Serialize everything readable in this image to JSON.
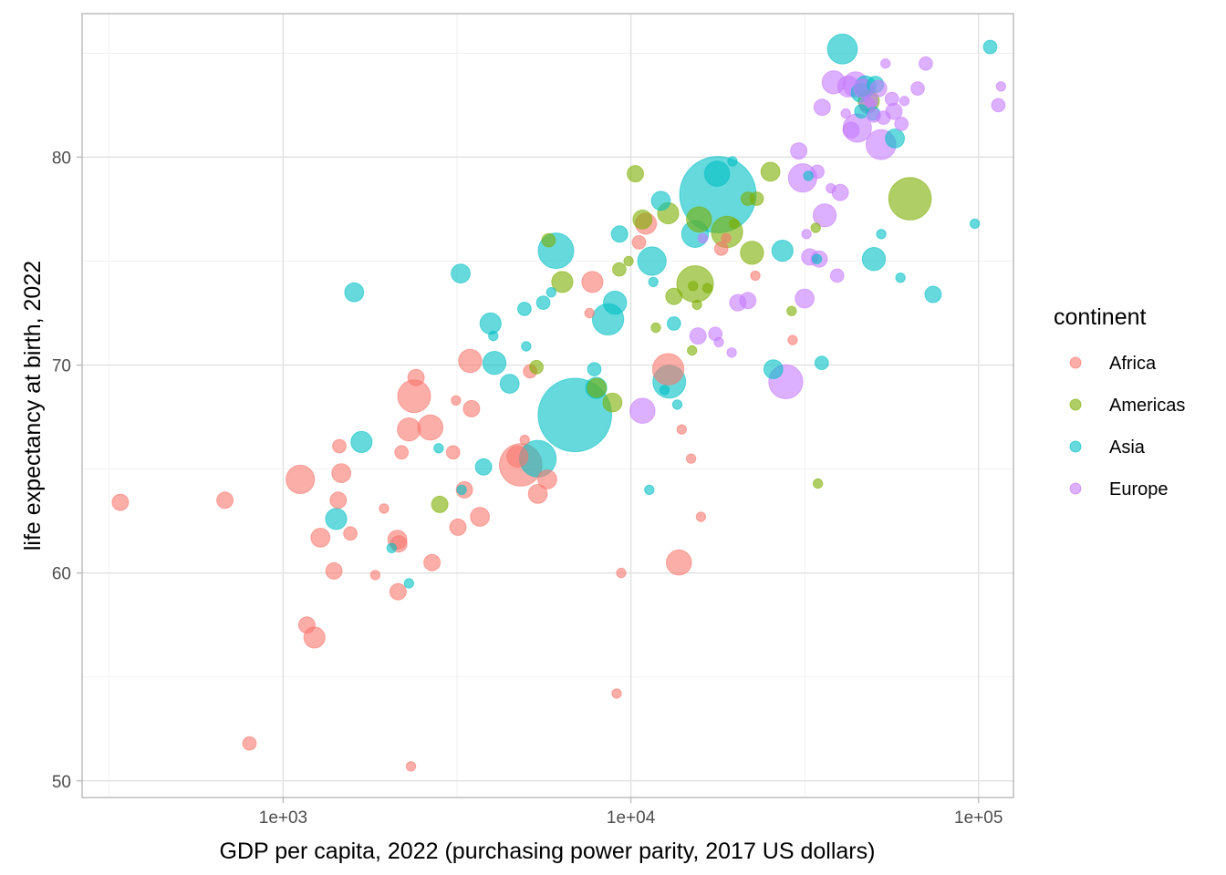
{
  "chart_data": {
    "type": "scatter",
    "title": "",
    "xlabel": "GDP per capita, 2022 (purchasing power parity, 2017 US dollars)",
    "ylabel": "life expectancy at birth, 2022",
    "x_scale": "log10",
    "xlim": [
      264,
      126000
    ],
    "ylim": [
      49.2,
      86.9
    ],
    "x_ticks": [
      1000,
      10000,
      100000
    ],
    "x_tick_labels": [
      "1e+03",
      "1e+04",
      "1e+05"
    ],
    "x_minor_ticks": [
      316,
      3162,
      31623
    ],
    "y_ticks": [
      50,
      60,
      70,
      80
    ],
    "y_tick_labels": [
      "50",
      "60",
      "70",
      "80"
    ],
    "y_minor_ticks": [
      55,
      65,
      75,
      85
    ],
    "grid": true,
    "legend": {
      "title": "continent",
      "position": "right"
    },
    "colors": {
      "Africa": "#F8766D",
      "Americas": "#7CAE00",
      "Asia": "#00BFC4",
      "Europe": "#C77CFF"
    },
    "point_alpha": 0.6,
    "size_encoding": "population (bubble area)",
    "series": [
      {
        "name": "Africa",
        "points": [
          {
            "x": 340,
            "y": 63.4,
            "s": 3
          },
          {
            "x": 680,
            "y": 63.5,
            "s": 3
          },
          {
            "x": 800,
            "y": 51.8,
            "s": 2
          },
          {
            "x": 1120,
            "y": 64.5,
            "s": 9
          },
          {
            "x": 1170,
            "y": 57.5,
            "s": 3
          },
          {
            "x": 1230,
            "y": 56.9,
            "s": 5
          },
          {
            "x": 1280,
            "y": 61.7,
            "s": 4
          },
          {
            "x": 1400,
            "y": 60.1,
            "s": 3
          },
          {
            "x": 1440,
            "y": 63.5,
            "s": 3
          },
          {
            "x": 1470,
            "y": 64.8,
            "s": 4
          },
          {
            "x": 1450,
            "y": 66.1,
            "s": 2
          },
          {
            "x": 1560,
            "y": 61.9,
            "s": 2
          },
          {
            "x": 1840,
            "y": 59.9,
            "s": 1
          },
          {
            "x": 1950,
            "y": 63.1,
            "s": 1
          },
          {
            "x": 2130,
            "y": 61.6,
            "s": 4
          },
          {
            "x": 2150,
            "y": 61.4,
            "s": 3
          },
          {
            "x": 2140,
            "y": 59.1,
            "s": 3
          },
          {
            "x": 2190,
            "y": 65.8,
            "s": 2
          },
          {
            "x": 2300,
            "y": 66.9,
            "s": 6
          },
          {
            "x": 2380,
            "y": 68.5,
            "s": 12
          },
          {
            "x": 2410,
            "y": 69.4,
            "s": 3
          },
          {
            "x": 2650,
            "y": 67.0,
            "s": 7
          },
          {
            "x": 2680,
            "y": 60.5,
            "s": 3
          },
          {
            "x": 2330,
            "y": 50.7,
            "s": 1
          },
          {
            "x": 3080,
            "y": 65.8,
            "s": 2
          },
          {
            "x": 3180,
            "y": 62.2,
            "s": 3
          },
          {
            "x": 3320,
            "y": 64.0,
            "s": 3
          },
          {
            "x": 3450,
            "y": 70.2,
            "s": 6
          },
          {
            "x": 3480,
            "y": 67.9,
            "s": 3
          },
          {
            "x": 3680,
            "y": 62.7,
            "s": 4
          },
          {
            "x": 3140,
            "y": 68.3,
            "s": 1
          },
          {
            "x": 4820,
            "y": 65.2,
            "s": 20
          },
          {
            "x": 4720,
            "y": 65.6,
            "s": 5
          },
          {
            "x": 5130,
            "y": 69.7,
            "s": 2
          },
          {
            "x": 5400,
            "y": 63.8,
            "s": 4
          },
          {
            "x": 5750,
            "y": 64.5,
            "s": 4
          },
          {
            "x": 4950,
            "y": 66.4,
            "s": 1
          },
          {
            "x": 7750,
            "y": 74.0,
            "s": 5
          },
          {
            "x": 7600,
            "y": 72.5,
            "s": 1
          },
          {
            "x": 9380,
            "y": 60.0,
            "s": 1
          },
          {
            "x": 9100,
            "y": 54.2,
            "s": 1
          },
          {
            "x": 11050,
            "y": 76.8,
            "s": 5
          },
          {
            "x": 10550,
            "y": 75.9,
            "s": 2
          },
          {
            "x": 12800,
            "y": 69.8,
            "s": 11
          },
          {
            "x": 13750,
            "y": 60.5,
            "s": 7
          },
          {
            "x": 14000,
            "y": 66.9,
            "s": 1
          },
          {
            "x": 14900,
            "y": 65.5,
            "s": 1
          },
          {
            "x": 15900,
            "y": 62.7,
            "s": 1
          },
          {
            "x": 18200,
            "y": 75.6,
            "s": 2
          },
          {
            "x": 18800,
            "y": 76.1,
            "s": 1
          },
          {
            "x": 22800,
            "y": 74.3,
            "s": 1
          },
          {
            "x": 29200,
            "y": 71.2,
            "s": 1
          }
        ]
      },
      {
        "name": "Americas",
        "points": [
          {
            "x": 2820,
            "y": 63.3,
            "s": 3
          },
          {
            "x": 5350,
            "y": 69.9,
            "s": 2
          },
          {
            "x": 5800,
            "y": 76.0,
            "s": 2
          },
          {
            "x": 6350,
            "y": 74.0,
            "s": 5
          },
          {
            "x": 7980,
            "y": 68.9,
            "s": 4
          },
          {
            "x": 8850,
            "y": 68.2,
            "s": 4
          },
          {
            "x": 9260,
            "y": 74.6,
            "s": 2
          },
          {
            "x": 9850,
            "y": 75.0,
            "s": 1
          },
          {
            "x": 10300,
            "y": 79.2,
            "s": 3
          },
          {
            "x": 10800,
            "y": 77.0,
            "s": 4
          },
          {
            "x": 11800,
            "y": 71.8,
            "s": 1
          },
          {
            "x": 12800,
            "y": 77.3,
            "s": 5
          },
          {
            "x": 13300,
            "y": 73.3,
            "s": 3
          },
          {
            "x": 15100,
            "y": 73.8,
            "s": 1
          },
          {
            "x": 15000,
            "y": 70.7,
            "s": 1
          },
          {
            "x": 15300,
            "y": 73.9,
            "s": 15
          },
          {
            "x": 15500,
            "y": 72.9,
            "s": 1
          },
          {
            "x": 15700,
            "y": 77.0,
            "s": 7
          },
          {
            "x": 16600,
            "y": 73.7,
            "s": 1
          },
          {
            "x": 18900,
            "y": 76.4,
            "s": 11
          },
          {
            "x": 19800,
            "y": 76.8,
            "s": 1
          },
          {
            "x": 21700,
            "y": 78.0,
            "s": 2
          },
          {
            "x": 22300,
            "y": 75.4,
            "s": 6
          },
          {
            "x": 23000,
            "y": 78.0,
            "s": 2
          },
          {
            "x": 25200,
            "y": 79.3,
            "s": 4
          },
          {
            "x": 29000,
            "y": 72.6,
            "s": 1
          },
          {
            "x": 34000,
            "y": 76.6,
            "s": 1
          },
          {
            "x": 34500,
            "y": 64.3,
            "s": 1
          },
          {
            "x": 48300,
            "y": 82.7,
            "s": 5
          },
          {
            "x": 63500,
            "y": 78.0,
            "s": 20
          }
        ]
      },
      {
        "name": "Asia",
        "points": [
          {
            "x": 1600,
            "y": 73.5,
            "s": 4
          },
          {
            "x": 1420,
            "y": 62.6,
            "s": 5
          },
          {
            "x": 1680,
            "y": 66.3,
            "s": 5
          },
          {
            "x": 2050,
            "y": 61.2,
            "s": 1
          },
          {
            "x": 2300,
            "y": 59.5,
            "s": 1
          },
          {
            "x": 2800,
            "y": 66.0,
            "s": 1
          },
          {
            "x": 3240,
            "y": 74.4,
            "s": 4
          },
          {
            "x": 3260,
            "y": 64.0,
            "s": 1
          },
          {
            "x": 3770,
            "y": 65.1,
            "s": 3
          },
          {
            "x": 3950,
            "y": 72.0,
            "s": 5
          },
          {
            "x": 4020,
            "y": 71.4,
            "s": 1
          },
          {
            "x": 4050,
            "y": 70.1,
            "s": 6
          },
          {
            "x": 4480,
            "y": 69.1,
            "s": 4
          },
          {
            "x": 4940,
            "y": 72.7,
            "s": 2
          },
          {
            "x": 5000,
            "y": 70.9,
            "s": 1
          },
          {
            "x": 5400,
            "y": 65.5,
            "s": 15
          },
          {
            "x": 5600,
            "y": 73.0,
            "s": 2
          },
          {
            "x": 5900,
            "y": 73.5,
            "s": 1
          },
          {
            "x": 6090,
            "y": 75.5,
            "s": 14
          },
          {
            "x": 6900,
            "y": 67.6,
            "s": 60
          },
          {
            "x": 7850,
            "y": 69.8,
            "s": 2
          },
          {
            "x": 7950,
            "y": 68.9,
            "s": 5
          },
          {
            "x": 8600,
            "y": 72.2,
            "s": 11
          },
          {
            "x": 9000,
            "y": 73.0,
            "s": 6
          },
          {
            "x": 9280,
            "y": 76.3,
            "s": 3
          },
          {
            "x": 11300,
            "y": 64.0,
            "s": 1
          },
          {
            "x": 11500,
            "y": 75.0,
            "s": 9
          },
          {
            "x": 11600,
            "y": 74.0,
            "s": 1
          },
          {
            "x": 12200,
            "y": 77.9,
            "s": 4
          },
          {
            "x": 12500,
            "y": 68.8,
            "s": 1
          },
          {
            "x": 12900,
            "y": 69.2,
            "s": 12
          },
          {
            "x": 13300,
            "y": 72.0,
            "s": 2
          },
          {
            "x": 13600,
            "y": 68.1,
            "s": 1
          },
          {
            "x": 15300,
            "y": 76.3,
            "s": 8
          },
          {
            "x": 17800,
            "y": 78.2,
            "s": 65
          },
          {
            "x": 17700,
            "y": 79.2,
            "s": 7
          },
          {
            "x": 19600,
            "y": 79.8,
            "s": 1
          },
          {
            "x": 25700,
            "y": 69.8,
            "s": 4
          },
          {
            "x": 27300,
            "y": 75.5,
            "s": 5
          },
          {
            "x": 32400,
            "y": 79.1,
            "s": 1
          },
          {
            "x": 34300,
            "y": 75.1,
            "s": 1
          },
          {
            "x": 35400,
            "y": 70.1,
            "s": 2
          },
          {
            "x": 40600,
            "y": 85.2,
            "s": 10
          },
          {
            "x": 45800,
            "y": 83.1,
            "s": 4
          },
          {
            "x": 46000,
            "y": 82.2,
            "s": 2
          },
          {
            "x": 47300,
            "y": 83.4,
            "s": 5
          },
          {
            "x": 49800,
            "y": 82.1,
            "s": 2
          },
          {
            "x": 50500,
            "y": 83.5,
            "s": 3
          },
          {
            "x": 50000,
            "y": 75.1,
            "s": 6
          },
          {
            "x": 52500,
            "y": 76.3,
            "s": 1
          },
          {
            "x": 57500,
            "y": 80.9,
            "s": 4
          },
          {
            "x": 59600,
            "y": 74.2,
            "s": 1
          },
          {
            "x": 74000,
            "y": 73.4,
            "s": 3
          },
          {
            "x": 97500,
            "y": 76.8,
            "s": 1
          },
          {
            "x": 108000,
            "y": 85.3,
            "s": 2
          }
        ]
      },
      {
        "name": "Europe",
        "points": [
          {
            "x": 10800,
            "y": 67.8,
            "s": 7
          },
          {
            "x": 15600,
            "y": 71.4,
            "s": 3
          },
          {
            "x": 16100,
            "y": 76.1,
            "s": 1
          },
          {
            "x": 17500,
            "y": 71.5,
            "s": 2
          },
          {
            "x": 17900,
            "y": 71.1,
            "s": 1
          },
          {
            "x": 19500,
            "y": 70.6,
            "s": 1
          },
          {
            "x": 20300,
            "y": 73.0,
            "s": 3
          },
          {
            "x": 21700,
            "y": 73.1,
            "s": 3
          },
          {
            "x": 27900,
            "y": 69.2,
            "s": 13
          },
          {
            "x": 30400,
            "y": 80.3,
            "s": 3
          },
          {
            "x": 31200,
            "y": 79.0,
            "s": 9
          },
          {
            "x": 31600,
            "y": 73.2,
            "s": 4
          },
          {
            "x": 32000,
            "y": 76.3,
            "s": 1
          },
          {
            "x": 32700,
            "y": 75.2,
            "s": 3
          },
          {
            "x": 34400,
            "y": 79.3,
            "s": 2
          },
          {
            "x": 34800,
            "y": 75.1,
            "s": 3
          },
          {
            "x": 35500,
            "y": 82.4,
            "s": 3
          },
          {
            "x": 36100,
            "y": 77.2,
            "s": 6
          },
          {
            "x": 37600,
            "y": 78.5,
            "s": 1
          },
          {
            "x": 38300,
            "y": 83.6,
            "s": 6
          },
          {
            "x": 39200,
            "y": 74.3,
            "s": 2
          },
          {
            "x": 40000,
            "y": 78.3,
            "s": 3
          },
          {
            "x": 41500,
            "y": 82.1,
            "s": 1
          },
          {
            "x": 42200,
            "y": 83.4,
            "s": 5
          },
          {
            "x": 43000,
            "y": 81.3,
            "s": 3
          },
          {
            "x": 44300,
            "y": 83.5,
            "s": 7
          },
          {
            "x": 44800,
            "y": 81.4,
            "s": 9
          },
          {
            "x": 46600,
            "y": 83.3,
            "s": 4
          },
          {
            "x": 47900,
            "y": 82.5,
            "s": 3
          },
          {
            "x": 49100,
            "y": 82.7,
            "s": 2
          },
          {
            "x": 50000,
            "y": 82.0,
            "s": 2
          },
          {
            "x": 51600,
            "y": 83.3,
            "s": 3
          },
          {
            "x": 52400,
            "y": 80.6,
            "s": 10
          },
          {
            "x": 53300,
            "y": 81.9,
            "s": 2
          },
          {
            "x": 54000,
            "y": 84.5,
            "s": 1
          },
          {
            "x": 56300,
            "y": 82.8,
            "s": 2
          },
          {
            "x": 57100,
            "y": 82.2,
            "s": 3
          },
          {
            "x": 60000,
            "y": 81.6,
            "s": 2
          },
          {
            "x": 61200,
            "y": 82.7,
            "s": 1
          },
          {
            "x": 66800,
            "y": 83.3,
            "s": 2
          },
          {
            "x": 70500,
            "y": 84.5,
            "s": 2
          },
          {
            "x": 114000,
            "y": 82.5,
            "s": 2
          },
          {
            "x": 116000,
            "y": 83.4,
            "s": 1
          }
        ]
      }
    ]
  }
}
